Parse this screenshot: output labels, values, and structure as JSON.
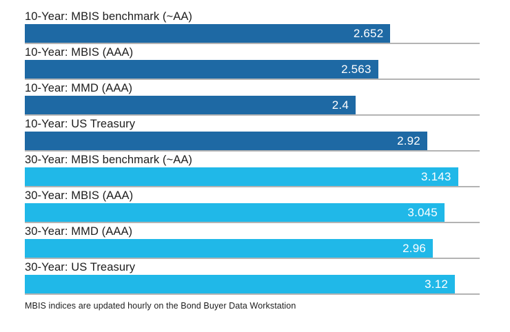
{
  "chart_data": {
    "type": "bar",
    "orientation": "horizontal",
    "title": "",
    "xlabel": "",
    "ylabel": "",
    "xlim": [
      0,
      3.3
    ],
    "legend": "none",
    "gridlines": "full-width gray baseline under each bar",
    "categories": [
      "10-Year: MBIS benchmark (~AA)",
      "10-Year: MBIS (AAA)",
      "10-Year: MMD (AAA)",
      "10-Year: US Treasury",
      "30-Year: MBIS benchmark (~AA)",
      "30-Year: MBIS (AAA)",
      "30-Year: MMD (AAA)",
      "30-Year: US Treasury"
    ],
    "values": [
      2.652,
      2.563,
      2.4,
      2.92,
      3.143,
      3.045,
      2.96,
      3.12
    ],
    "value_labels": [
      "2.652",
      "2.563",
      "2.4",
      "2.92",
      "3.143",
      "3.045",
      "2.96",
      "3.12"
    ],
    "groups": [
      "10_year",
      "10_year",
      "10_year",
      "10_year",
      "30_year",
      "30_year",
      "30_year",
      "30_year"
    ],
    "series": [
      {
        "name": "10-Year",
        "color": "#1e69a4",
        "values": [
          2.652,
          2.563,
          2.4,
          2.92
        ]
      },
      {
        "name": "30-Year",
        "color": "#20b8e8",
        "values": [
          3.143,
          3.045,
          2.96,
          3.12
        ]
      }
    ],
    "footnote": "MBIS indices are updated hourly on the Bond Buyer Data Workstation"
  },
  "colors": {
    "bar_10_year": "#1e69a4",
    "bar_30_year": "#20b8e8",
    "baseline": "#b3b3b3",
    "label_text": "#1d1d1d",
    "value_text": "#ffffff",
    "background": "#ffffff"
  }
}
